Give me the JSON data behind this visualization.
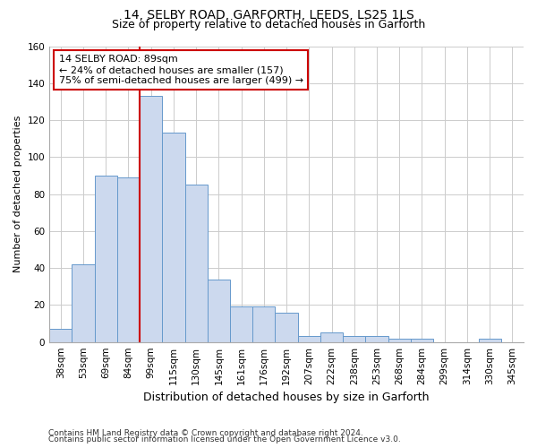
{
  "title1": "14, SELBY ROAD, GARFORTH, LEEDS, LS25 1LS",
  "title2": "Size of property relative to detached houses in Garforth",
  "xlabel": "Distribution of detached houses by size in Garforth",
  "ylabel": "Number of detached properties",
  "categories": [
    "38sqm",
    "53sqm",
    "69sqm",
    "84sqm",
    "99sqm",
    "115sqm",
    "130sqm",
    "145sqm",
    "161sqm",
    "176sqm",
    "192sqm",
    "207sqm",
    "222sqm",
    "238sqm",
    "253sqm",
    "268sqm",
    "284sqm",
    "299sqm",
    "314sqm",
    "330sqm",
    "345sqm"
  ],
  "values": [
    7,
    42,
    90,
    89,
    133,
    113,
    85,
    34,
    19,
    19,
    16,
    3,
    5,
    3,
    3,
    2,
    2,
    0,
    0,
    2,
    0
  ],
  "bar_color": "#ccd9ee",
  "bar_edge_color": "#6699cc",
  "vline_color": "#cc0000",
  "annotation_line1": "14 SELBY ROAD: 89sqm",
  "annotation_line2": "← 24% of detached houses are smaller (157)",
  "annotation_line3": "75% of semi-detached houses are larger (499) →",
  "annotation_box_color": "white",
  "annotation_box_edge_color": "#cc0000",
  "ylim": [
    0,
    160
  ],
  "yticks": [
    0,
    20,
    40,
    60,
    80,
    100,
    120,
    140,
    160
  ],
  "footer1": "Contains HM Land Registry data © Crown copyright and database right 2024.",
  "footer2": "Contains public sector information licensed under the Open Government Licence v3.0.",
  "background_color": "white",
  "grid_color": "#cccccc",
  "title1_fontsize": 10,
  "title2_fontsize": 9,
  "xlabel_fontsize": 9,
  "ylabel_fontsize": 8,
  "tick_fontsize": 7.5,
  "footer_fontsize": 6.5
}
